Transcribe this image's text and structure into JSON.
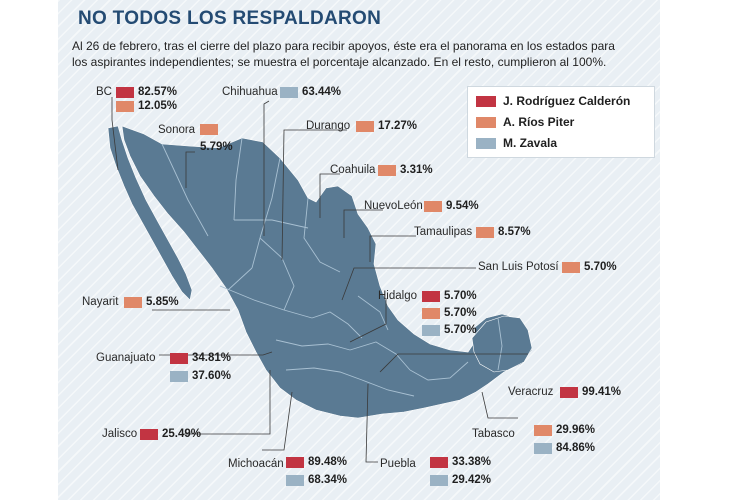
{
  "title": "NO TODOS LOS RESPALDARON",
  "intro": "Al 26 de febrero, tras el cierre del plazo para recibir apoyos, éste era el panorama en los estados para los aspirantes independientes; se muestra el porcentaje alcanzado. En el resto, cumplieron al 100%.",
  "colors": {
    "rodriguez": "#c23442",
    "rios": "#e08868",
    "zavala": "#9ab2c4",
    "map": "#5a7a93"
  },
  "legend": [
    {
      "name": "J. Rodríguez Calderón",
      "color_key": "rodriguez"
    },
    {
      "name": "A. Ríos Piter",
      "color_key": "rios"
    },
    {
      "name": "M. Zavala",
      "color_key": "zavala"
    }
  ],
  "states": {
    "bc": {
      "name": "BC",
      "values": [
        "82.57%",
        "12.05%"
      ]
    },
    "chihuahua": {
      "name": "Chihuahua",
      "values": [
        "63.44%"
      ]
    },
    "sonora": {
      "name": "Sonora",
      "values": [
        "5.79%"
      ]
    },
    "durango": {
      "name": "Durango",
      "values": [
        "17.27%"
      ]
    },
    "coahuila": {
      "name": "Coahuila",
      "values": [
        "3.31%"
      ]
    },
    "nuevoleon": {
      "name": "NuevoLeón",
      "values": [
        "9.54%"
      ]
    },
    "tamaulipas": {
      "name": "Tamaulipas",
      "values": [
        "8.57%"
      ]
    },
    "slp": {
      "name": "San Luis Potosí",
      "values": [
        "5.70%"
      ]
    },
    "nayarit": {
      "name": "Nayarit",
      "values": [
        "5.85%"
      ]
    },
    "hidalgo": {
      "name": "Hidalgo",
      "values": [
        "5.70%",
        "5.70%",
        "5.70%"
      ]
    },
    "guanajuato": {
      "name": "Guanajuato",
      "values": [
        "34.81%",
        "37.60%"
      ]
    },
    "veracruz": {
      "name": "Veracruz",
      "values": [
        "99.41%"
      ]
    },
    "jalisco": {
      "name": "Jalisco",
      "values": [
        "25.49%"
      ]
    },
    "tabasco": {
      "name": "Tabasco",
      "values": [
        "29.96%",
        "84.86%"
      ]
    },
    "michoacan": {
      "name": "Michoacán",
      "values": [
        "89.48%",
        "68.34%"
      ]
    },
    "puebla": {
      "name": "Puebla",
      "values": [
        "33.38%",
        "29.42%"
      ]
    }
  }
}
